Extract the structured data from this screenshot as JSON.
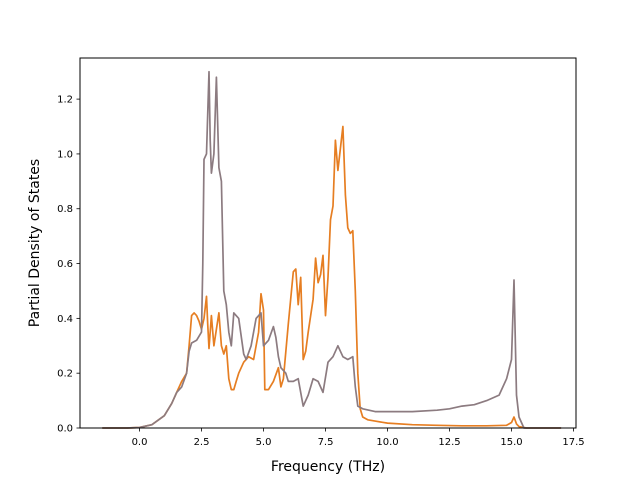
{
  "chart_data": {
    "type": "line",
    "title": "",
    "xlabel": "Frequency (THz)",
    "ylabel": "Partial Density of States",
    "xlim": [
      -2.4,
      17.6
    ],
    "ylim": [
      0.0,
      1.35
    ],
    "grid": false,
    "legend": "none",
    "xticks": [
      0.0,
      2.5,
      5.0,
      7.5,
      10.0,
      12.5,
      15.0,
      17.5
    ],
    "xtick_labels": [
      "0.0",
      "2.5",
      "5.0",
      "7.5",
      "10.0",
      "12.5",
      "15.0",
      "17.5"
    ],
    "yticks": [
      0.0,
      0.2,
      0.4,
      0.6,
      0.8,
      1.0,
      1.2
    ],
    "ytick_labels": [
      "0.0",
      "0.2",
      "0.4",
      "0.6",
      "0.8",
      "1.0",
      "1.2"
    ],
    "series": [
      {
        "color": "#e67e22",
        "points": [
          [
            -1.5,
            0.0
          ],
          [
            -0.5,
            0.0
          ],
          [
            0.0,
            0.002
          ],
          [
            0.5,
            0.012
          ],
          [
            1.0,
            0.045
          ],
          [
            1.3,
            0.09
          ],
          [
            1.5,
            0.13
          ],
          [
            1.7,
            0.17
          ],
          [
            1.9,
            0.2
          ],
          [
            2.0,
            0.3
          ],
          [
            2.1,
            0.41
          ],
          [
            2.2,
            0.42
          ],
          [
            2.3,
            0.41
          ],
          [
            2.4,
            0.39
          ],
          [
            2.5,
            0.36
          ],
          [
            2.6,
            0.4
          ],
          [
            2.7,
            0.48
          ],
          [
            2.75,
            0.38
          ],
          [
            2.8,
            0.29
          ],
          [
            2.9,
            0.41
          ],
          [
            3.0,
            0.3
          ],
          [
            3.1,
            0.36
          ],
          [
            3.2,
            0.42
          ],
          [
            3.3,
            0.3
          ],
          [
            3.4,
            0.27
          ],
          [
            3.5,
            0.3
          ],
          [
            3.6,
            0.18
          ],
          [
            3.7,
            0.14
          ],
          [
            3.8,
            0.14
          ],
          [
            3.9,
            0.17
          ],
          [
            4.0,
            0.2
          ],
          [
            4.2,
            0.24
          ],
          [
            4.4,
            0.26
          ],
          [
            4.6,
            0.25
          ],
          [
            4.8,
            0.35
          ],
          [
            4.9,
            0.49
          ],
          [
            5.0,
            0.43
          ],
          [
            5.05,
            0.14
          ],
          [
            5.2,
            0.14
          ],
          [
            5.4,
            0.17
          ],
          [
            5.6,
            0.22
          ],
          [
            5.7,
            0.15
          ],
          [
            5.8,
            0.18
          ],
          [
            6.0,
            0.38
          ],
          [
            6.2,
            0.57
          ],
          [
            6.3,
            0.58
          ],
          [
            6.4,
            0.45
          ],
          [
            6.5,
            0.55
          ],
          [
            6.6,
            0.25
          ],
          [
            6.7,
            0.28
          ],
          [
            6.8,
            0.35
          ],
          [
            7.0,
            0.47
          ],
          [
            7.1,
            0.62
          ],
          [
            7.2,
            0.53
          ],
          [
            7.3,
            0.56
          ],
          [
            7.4,
            0.63
          ],
          [
            7.5,
            0.41
          ],
          [
            7.6,
            0.55
          ],
          [
            7.7,
            0.76
          ],
          [
            7.8,
            0.81
          ],
          [
            7.9,
            1.05
          ],
          [
            8.0,
            0.94
          ],
          [
            8.1,
            1.02
          ],
          [
            8.2,
            1.1
          ],
          [
            8.3,
            0.85
          ],
          [
            8.4,
            0.73
          ],
          [
            8.5,
            0.71
          ],
          [
            8.6,
            0.72
          ],
          [
            8.7,
            0.5
          ],
          [
            8.8,
            0.2
          ],
          [
            8.9,
            0.07
          ],
          [
            9.0,
            0.04
          ],
          [
            9.2,
            0.03
          ],
          [
            9.5,
            0.025
          ],
          [
            10.0,
            0.018
          ],
          [
            11.0,
            0.012
          ],
          [
            12.0,
            0.01
          ],
          [
            13.0,
            0.008
          ],
          [
            14.0,
            0.008
          ],
          [
            14.8,
            0.01
          ],
          [
            15.0,
            0.02
          ],
          [
            15.1,
            0.04
          ],
          [
            15.2,
            0.015
          ],
          [
            15.3,
            0.005
          ],
          [
            15.6,
            0.0
          ],
          [
            17.0,
            0.0
          ]
        ]
      },
      {
        "color": "#8c7b80",
        "points": [
          [
            -1.5,
            0.0
          ],
          [
            -0.5,
            0.0
          ],
          [
            0.0,
            0.002
          ],
          [
            0.5,
            0.012
          ],
          [
            1.0,
            0.045
          ],
          [
            1.3,
            0.09
          ],
          [
            1.5,
            0.13
          ],
          [
            1.7,
            0.15
          ],
          [
            1.9,
            0.2
          ],
          [
            2.0,
            0.28
          ],
          [
            2.1,
            0.31
          ],
          [
            2.3,
            0.32
          ],
          [
            2.5,
            0.35
          ],
          [
            2.55,
            0.6
          ],
          [
            2.6,
            0.98
          ],
          [
            2.7,
            1.0
          ],
          [
            2.8,
            1.3
          ],
          [
            2.85,
            1.05
          ],
          [
            2.9,
            0.93
          ],
          [
            3.0,
            1.0
          ],
          [
            3.1,
            1.28
          ],
          [
            3.2,
            0.95
          ],
          [
            3.3,
            0.9
          ],
          [
            3.4,
            0.5
          ],
          [
            3.5,
            0.45
          ],
          [
            3.6,
            0.35
          ],
          [
            3.7,
            0.3
          ],
          [
            3.8,
            0.42
          ],
          [
            4.0,
            0.4
          ],
          [
            4.2,
            0.27
          ],
          [
            4.3,
            0.25
          ],
          [
            4.5,
            0.3
          ],
          [
            4.7,
            0.4
          ],
          [
            4.9,
            0.42
          ],
          [
            5.0,
            0.3
          ],
          [
            5.2,
            0.32
          ],
          [
            5.4,
            0.37
          ],
          [
            5.5,
            0.33
          ],
          [
            5.6,
            0.26
          ],
          [
            5.7,
            0.22
          ],
          [
            5.9,
            0.2
          ],
          [
            6.0,
            0.17
          ],
          [
            6.2,
            0.17
          ],
          [
            6.4,
            0.18
          ],
          [
            6.6,
            0.08
          ],
          [
            6.8,
            0.12
          ],
          [
            7.0,
            0.18
          ],
          [
            7.2,
            0.17
          ],
          [
            7.4,
            0.13
          ],
          [
            7.6,
            0.24
          ],
          [
            7.8,
            0.26
          ],
          [
            8.0,
            0.3
          ],
          [
            8.2,
            0.26
          ],
          [
            8.4,
            0.25
          ],
          [
            8.6,
            0.26
          ],
          [
            8.7,
            0.15
          ],
          [
            8.8,
            0.08
          ],
          [
            9.0,
            0.07
          ],
          [
            9.5,
            0.06
          ],
          [
            10.0,
            0.06
          ],
          [
            11.0,
            0.06
          ],
          [
            12.0,
            0.065
          ],
          [
            12.5,
            0.07
          ],
          [
            13.0,
            0.08
          ],
          [
            13.5,
            0.085
          ],
          [
            14.0,
            0.1
          ],
          [
            14.5,
            0.12
          ],
          [
            14.8,
            0.18
          ],
          [
            15.0,
            0.25
          ],
          [
            15.1,
            0.54
          ],
          [
            15.2,
            0.12
          ],
          [
            15.3,
            0.04
          ],
          [
            15.5,
            0.0
          ],
          [
            17.0,
            0.0
          ]
        ]
      }
    ]
  }
}
